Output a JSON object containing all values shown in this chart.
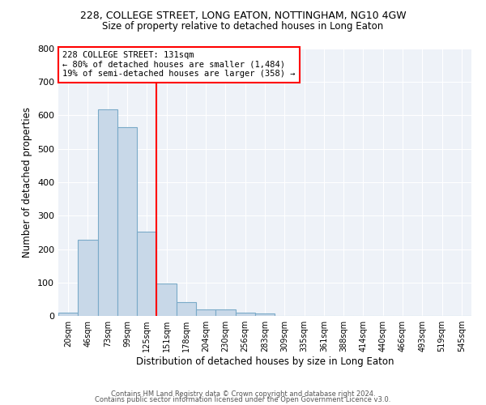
{
  "title": "228, COLLEGE STREET, LONG EATON, NOTTINGHAM, NG10 4GW",
  "subtitle": "Size of property relative to detached houses in Long Eaton",
  "xlabel": "Distribution of detached houses by size in Long Eaton",
  "ylabel": "Number of detached properties",
  "bar_color": "#c8d8e8",
  "bar_edge_color": "#7aaac8",
  "background_color": "#eef2f8",
  "categories": [
    "20sqm",
    "46sqm",
    "73sqm",
    "99sqm",
    "125sqm",
    "151sqm",
    "178sqm",
    "204sqm",
    "230sqm",
    "256sqm",
    "283sqm",
    "309sqm",
    "335sqm",
    "361sqm",
    "388sqm",
    "414sqm",
    "440sqm",
    "466sqm",
    "493sqm",
    "519sqm",
    "545sqm"
  ],
  "bar_heights": [
    10,
    228,
    619,
    565,
    252,
    96,
    42,
    20,
    20,
    10,
    7,
    0,
    0,
    0,
    0,
    0,
    0,
    0,
    0,
    0,
    0
  ],
  "ylim": [
    0,
    800
  ],
  "yticks": [
    0,
    100,
    200,
    300,
    400,
    500,
    600,
    700,
    800
  ],
  "property_label": "228 COLLEGE STREET: 131sqm",
  "annotation_line1": "← 80% of detached houses are smaller (1,484)",
  "annotation_line2": "19% of semi-detached houses are larger (358) →",
  "annotation_box_color": "white",
  "annotation_border_color": "red",
  "vline_color": "red",
  "vline_x_index": 4.5,
  "footer_line1": "Contains HM Land Registry data © Crown copyright and database right 2024.",
  "footer_line2": "Contains public sector information licensed under the Open Government Licence v3.0."
}
